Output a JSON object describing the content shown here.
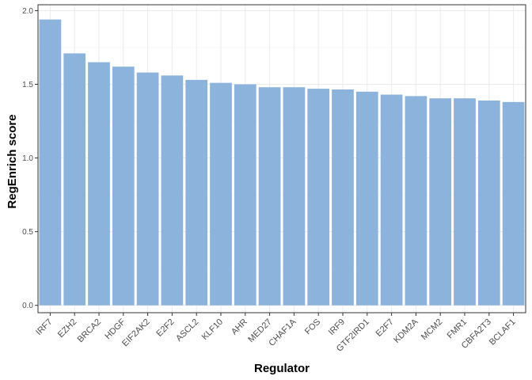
{
  "chart_data": {
    "type": "bar",
    "xlabel": "Regulator",
    "ylabel": "RegEnrich score",
    "categories": [
      "IRF7",
      "EZH2",
      "BRCA2",
      "HDGF",
      "EIF2AK2",
      "E2F2",
      "ASCL2",
      "KLF10",
      "AHR",
      "MED27",
      "CHAF1A",
      "FOS",
      "IRF9",
      "GTF2IRD1",
      "E2F7",
      "KDM2A",
      "MCM2",
      "FMR1",
      "CBFA2T3",
      "BCLAF1"
    ],
    "values": [
      1.94,
      1.71,
      1.65,
      1.62,
      1.58,
      1.56,
      1.53,
      1.51,
      1.5,
      1.48,
      1.48,
      1.47,
      1.465,
      1.45,
      1.43,
      1.42,
      1.405,
      1.405,
      1.39,
      1.38
    ],
    "y_ticks": [
      "0.0",
      "0.5",
      "1.0",
      "1.5",
      "2.0"
    ],
    "ylim": [
      -0.05,
      2.04
    ],
    "grid": true,
    "colors": {
      "bar": "#8CB3DB",
      "grid_major": "#ebebeb",
      "grid_minor": "#f5f5f5",
      "border": "#333333"
    }
  }
}
